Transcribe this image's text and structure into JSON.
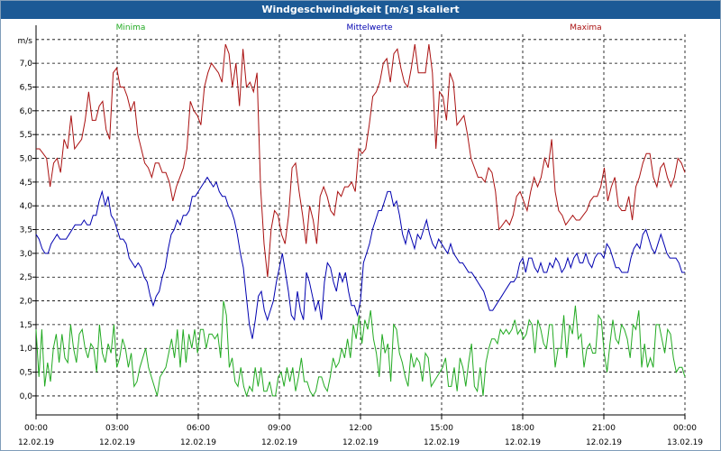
{
  "window": {
    "title": "Windgeschwindigkeit [m/s] skaliert"
  },
  "chart_data": {
    "type": "line",
    "title": "Windgeschwindigkeit [m/s] skaliert",
    "ylabel": "m/s",
    "xlabel": "",
    "ylim": [
      -0.4,
      7.8
    ],
    "xlim": [
      0,
      24
    ],
    "grid": true,
    "legend_position": "top",
    "y_ticks": [
      "0,0",
      "0,5",
      "1,0",
      "1,5",
      "2,0",
      "2,5",
      "3,0",
      "3,5",
      "4,0",
      "4,5",
      "5,0",
      "5,5",
      "6,0",
      "6,5",
      "7,0"
    ],
    "x_ticks": [
      {
        "time": "00:00",
        "date": "12.02.19"
      },
      {
        "time": "03:00",
        "date": "12.02.19"
      },
      {
        "time": "06:00",
        "date": "12.02.19"
      },
      {
        "time": "09:00",
        "date": "12.02.19"
      },
      {
        "time": "12:00",
        "date": "12.02.19"
      },
      {
        "time": "15:00",
        "date": "12.02.19"
      },
      {
        "time": "18:00",
        "date": "12.02.19"
      },
      {
        "time": "21:00",
        "date": "12.02.19"
      },
      {
        "time": "00:00",
        "date": "13.02.19"
      }
    ],
    "series": [
      {
        "name": "Minima",
        "color": "#22aa22",
        "values": [
          1.4,
          0.4,
          1.4,
          0.2,
          0.7,
          0.3,
          1.0,
          1.3,
          0.7,
          1.3,
          0.8,
          0.7,
          1.5,
          1.0,
          0.7,
          1.3,
          1.4,
          1.0,
          0.8,
          1.1,
          1.0,
          0.5,
          1.5,
          0.9,
          0.7,
          1.1,
          0.9,
          1.5,
          0.6,
          0.8,
          1.2,
          1.0,
          0.6,
          0.9,
          0.2,
          0.3,
          0.6,
          0.8,
          1.0,
          0.6,
          0.4,
          0.2,
          0.0,
          0.4,
          0.5,
          0.6,
          0.9,
          1.2,
          0.8,
          1.4,
          0.6,
          1.4,
          0.7,
          1.3,
          1.0,
          1.4,
          0.9,
          1.4,
          1.4,
          1.0,
          1.3,
          1.3,
          1.2,
          1.3,
          0.8,
          2.0,
          1.7,
          0.6,
          0.8,
          0.3,
          0.2,
          0.6,
          0.2,
          0.0,
          0.2,
          0.1,
          0.6,
          0.2,
          0.6,
          0.1,
          0.1,
          0.3,
          0.0,
          0.0,
          0.4,
          0.5,
          0.2,
          0.6,
          0.3,
          0.6,
          0.1,
          0.4,
          0.8,
          0.3,
          0.3,
          0.1,
          0.0,
          0.1,
          0.4,
          0.4,
          0.2,
          0.1,
          0.4,
          0.8,
          0.6,
          0.7,
          1.0,
          0.8,
          1.2,
          0.8,
          1.5,
          1.2,
          1.7,
          1.1,
          1.6,
          1.4,
          1.8,
          1.2,
          0.9,
          0.4,
          1.3,
          0.9,
          1.1,
          0.3,
          1.5,
          1.4,
          0.9,
          0.7,
          0.4,
          0.2,
          0.9,
          0.6,
          0.8,
          0.7,
          0.3,
          0.9,
          0.8,
          0.2,
          0.3,
          0.4,
          0.5,
          0.6,
          0.8,
          0.2,
          0.2,
          0.6,
          0.1,
          0.8,
          0.6,
          0.2,
          0.7,
          1.1,
          0.2,
          0.1,
          0.6,
          0.0,
          0.7,
          1.0,
          1.2,
          1.2,
          1.1,
          1.4,
          1.3,
          1.4,
          1.3,
          1.4,
          1.6,
          1.3,
          1.4,
          1.2,
          1.3,
          1.6,
          1.5,
          0.9,
          1.6,
          1.4,
          1.1,
          1.0,
          1.5,
          1.5,
          0.6,
          1.0,
          1.0,
          1.7,
          0.8,
          1.5,
          1.3,
          1.9,
          1.2,
          1.3,
          0.6,
          1.0,
          1.1,
          0.9,
          0.9,
          1.7,
          1.6,
          0.9,
          0.5,
          1.1,
          1.6,
          1.2,
          1.1,
          1.5,
          1.4,
          1.2,
          0.8,
          1.5,
          1.4,
          1.8,
          0.6,
          1.1,
          0.6,
          0.8,
          0.6,
          1.5,
          1.5,
          1.2,
          0.9,
          1.4,
          1.3,
          0.8,
          0.5,
          0.6,
          0.6,
          0.4
        ]
      },
      {
        "name": "Mittelwerte",
        "color": "#0000b0",
        "values": [
          3.4,
          3.3,
          3.1,
          3.0,
          3.0,
          3.2,
          3.3,
          3.4,
          3.3,
          3.3,
          3.3,
          3.4,
          3.5,
          3.6,
          3.6,
          3.6,
          3.7,
          3.6,
          3.6,
          3.8,
          3.8,
          4.1,
          4.3,
          4.0,
          4.2,
          3.8,
          3.7,
          3.5,
          3.3,
          3.3,
          3.2,
          2.9,
          2.8,
          2.7,
          2.8,
          2.7,
          2.5,
          2.4,
          2.1,
          1.9,
          2.1,
          2.2,
          2.5,
          2.7,
          3.1,
          3.4,
          3.5,
          3.7,
          3.6,
          3.8,
          3.8,
          3.9,
          4.2,
          4.2,
          4.3,
          4.4,
          4.5,
          4.6,
          4.5,
          4.4,
          4.5,
          4.3,
          4.2,
          4.2,
          4.0,
          3.9,
          3.7,
          3.4,
          3.0,
          2.7,
          2.1,
          1.5,
          1.2,
          1.6,
          2.1,
          2.2,
          1.8,
          1.6,
          1.8,
          2.0,
          2.4,
          2.7,
          3.0,
          2.6,
          2.2,
          1.7,
          1.6,
          2.2,
          1.8,
          1.6,
          2.6,
          2.4,
          2.1,
          1.8,
          2.0,
          1.6,
          2.4,
          2.8,
          2.7,
          2.4,
          2.2,
          2.6,
          2.4,
          2.6,
          2.2,
          1.9,
          1.9,
          1.7,
          2.0,
          2.8,
          3.0,
          3.2,
          3.5,
          3.7,
          3.9,
          3.9,
          4.1,
          4.3,
          4.3,
          4.0,
          4.1,
          3.8,
          3.4,
          3.2,
          3.5,
          3.3,
          3.1,
          3.4,
          3.3,
          3.5,
          3.7,
          3.4,
          3.2,
          3.1,
          3.3,
          3.2,
          3.1,
          3.0,
          3.2,
          3.0,
          2.9,
          2.8,
          2.8,
          2.7,
          2.6,
          2.6,
          2.5,
          2.4,
          2.3,
          2.2,
          2.0,
          1.8,
          1.8,
          1.9,
          2.0,
          2.1,
          2.2,
          2.3,
          2.4,
          2.4,
          2.5,
          2.8,
          2.9,
          2.6,
          2.9,
          2.9,
          2.7,
          2.6,
          2.8,
          2.6,
          2.6,
          2.8,
          2.7,
          2.9,
          2.8,
          2.6,
          2.7,
          2.9,
          2.7,
          2.9,
          3.0,
          2.8,
          2.8,
          3.0,
          2.8,
          2.7,
          2.9,
          3.0,
          3.0,
          2.9,
          3.2,
          3.1,
          2.9,
          2.7,
          2.7,
          2.6,
          2.6,
          2.6,
          2.9,
          3.1,
          3.2,
          3.1,
          3.4,
          3.5,
          3.3,
          3.1,
          3.0,
          3.2,
          3.4,
          3.2,
          3.0,
          2.9,
          2.9,
          2.9,
          2.8,
          2.6,
          2.6
        ]
      },
      {
        "name": "Maxima",
        "color": "#aa1111",
        "values": [
          5.2,
          5.2,
          5.1,
          5.0,
          4.4,
          4.9,
          5.0,
          4.7,
          5.4,
          5.2,
          5.9,
          5.2,
          5.3,
          5.4,
          5.8,
          6.4,
          5.8,
          5.8,
          6.1,
          6.2,
          5.6,
          5.4,
          6.8,
          6.9,
          6.5,
          6.5,
          6.3,
          6.0,
          6.2,
          5.5,
          5.2,
          4.9,
          4.8,
          4.6,
          4.9,
          4.9,
          4.7,
          4.7,
          4.5,
          4.1,
          4.4,
          4.6,
          4.8,
          5.2,
          6.2,
          6.0,
          5.9,
          5.7,
          6.5,
          6.8,
          7.0,
          6.9,
          6.8,
          6.6,
          7.4,
          7.2,
          6.5,
          7.0,
          6.1,
          7.3,
          6.5,
          6.6,
          6.4,
          6.8,
          4.4,
          3.2,
          2.5,
          3.5,
          3.9,
          3.8,
          3.4,
          3.2,
          3.8,
          4.8,
          4.9,
          4.3,
          3.8,
          3.2,
          4.0,
          3.7,
          3.2,
          4.2,
          4.4,
          4.2,
          3.9,
          3.8,
          4.3,
          4.2,
          4.4,
          4.4,
          4.5,
          4.3,
          5.2,
          5.1,
          5.2,
          5.7,
          6.3,
          6.4,
          6.6,
          7.0,
          7.1,
          6.6,
          7.2,
          7.3,
          6.9,
          6.6,
          6.5,
          6.9,
          7.4,
          6.8,
          6.8,
          6.8,
          7.4,
          6.8,
          5.2,
          6.4,
          6.3,
          5.8,
          6.8,
          6.6,
          5.7,
          5.8,
          5.9,
          5.5,
          5.0,
          4.8,
          4.6,
          4.6,
          4.5,
          4.8,
          4.7,
          4.3,
          3.5,
          3.6,
          3.7,
          3.6,
          3.8,
          4.2,
          4.3,
          4.1,
          3.9,
          4.3,
          4.6,
          4.4,
          4.6,
          5.0,
          4.8,
          5.4,
          4.3,
          3.9,
          3.8,
          3.6,
          3.7,
          3.8,
          3.7,
          3.7,
          3.8,
          3.9,
          4.1,
          4.2,
          4.2,
          4.4,
          4.8,
          4.1,
          4.4,
          4.6,
          4.0,
          3.9,
          3.9,
          4.2,
          3.7,
          4.4,
          4.6,
          4.9,
          5.1,
          5.1,
          4.6,
          4.4,
          4.8,
          4.9,
          4.6,
          4.4,
          4.6,
          5.0,
          4.9,
          4.7
        ]
      }
    ]
  }
}
